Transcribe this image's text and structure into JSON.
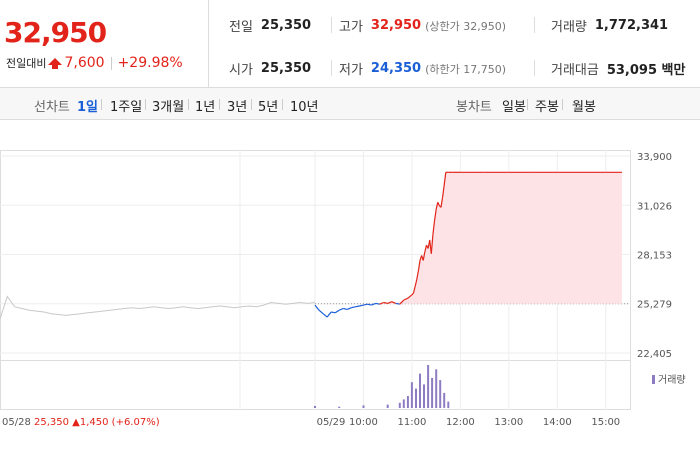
{
  "header": {
    "price": "32,950",
    "change_label": "전일대비",
    "change_amount": "7,600",
    "change_pct": "+29.98%"
  },
  "stats": {
    "prev_close_label": "전일",
    "prev_close": "25,350",
    "high_label": "고가",
    "high": "32,950",
    "upper_limit": "(상한가 32,950)",
    "volume_label": "거래량",
    "volume": "1,772,341",
    "open_label": "시가",
    "open": "25,350",
    "low_label": "저가",
    "low": "24,350",
    "lower_limit": "(하한가 17,750)",
    "amount_label": "거래대금",
    "amount": "53,095 백만"
  },
  "tabs": {
    "line_label": "선차트",
    "periods": [
      "1일",
      "1주일",
      "3개월",
      "1년",
      "3년",
      "5년",
      "10년"
    ],
    "active": "1일",
    "candle_label": "봉차트",
    "candles": [
      "일봉",
      "주봉",
      "월봉"
    ]
  },
  "colors": {
    "up": "#e2231a",
    "down": "#1a5fd6",
    "fill": "#fde3e5",
    "prev": "#c8c8c8",
    "volume": "#8e7cc3"
  },
  "chart_data": {
    "type": "line",
    "y_ticks": [
      "33,900",
      "31,026",
      "28,153",
      "25,279",
      "22,405"
    ],
    "ylim": [
      22405,
      33900
    ],
    "base_price": 25279,
    "x_ticks": [
      "05/29",
      "10:00",
      "11:00",
      "12:00",
      "13:00",
      "14:00",
      "15:00"
    ],
    "prev_day_label": "05/28",
    "prev_day_close": "25,350",
    "prev_day_change": "1,450",
    "prev_day_pct": "(+6.07%)",
    "volume_legend": "거래량",
    "prev_day": {
      "values": [
        24400,
        25700,
        25100,
        25000,
        24900,
        24850,
        24800,
        24700,
        24650,
        24600,
        24650,
        24700,
        24750,
        24800,
        24850,
        24900,
        24950,
        25000,
        25050,
        25000,
        25050,
        25100,
        25050,
        25000,
        25050,
        25100,
        25050,
        25000,
        25050,
        25100,
        25150,
        25100,
        25050,
        25100,
        25150,
        25100,
        25200,
        25350,
        25300,
        25250,
        25300,
        25350,
        25300,
        25350
      ]
    },
    "today": {
      "times": [
        "09:00",
        "09:05",
        "09:10",
        "09:15",
        "09:20",
        "09:25",
        "09:30",
        "09:35",
        "09:40",
        "09:45",
        "09:50",
        "09:55",
        "10:00",
        "10:05",
        "10:10",
        "10:15",
        "10:20",
        "10:25",
        "10:30",
        "10:35",
        "10:40",
        "10:45",
        "10:50",
        "10:55",
        "11:00",
        "11:02",
        "11:04",
        "11:06",
        "11:08",
        "11:10",
        "11:12",
        "11:14",
        "11:16",
        "11:18",
        "11:20",
        "11:22",
        "11:24",
        "11:26",
        "11:28",
        "11:30",
        "11:32",
        "11:34",
        "11:36",
        "11:38",
        "11:40",
        "11:42",
        "11:45",
        "11:50",
        "12:00",
        "12:30",
        "13:00",
        "13:30",
        "14:00",
        "14:30",
        "15:00",
        "15:20"
      ],
      "values": [
        25200,
        24900,
        24700,
        24500,
        24800,
        24750,
        24900,
        25000,
        24950,
        25050,
        25100,
        25150,
        25200,
        25250,
        25200,
        25300,
        25250,
        25350,
        25300,
        25400,
        25300,
        25250,
        25500,
        25600,
        25800,
        25900,
        26300,
        26700,
        27200,
        27800,
        28100,
        27800,
        28300,
        28700,
        28500,
        29000,
        28200,
        29300,
        30100,
        30800,
        31200,
        31000,
        30900,
        31500,
        32200,
        32950,
        32950,
        32950,
        32950,
        32950,
        32950,
        32950,
        32950,
        32950,
        32950,
        32950
      ]
    },
    "volume": {
      "times": [
        "09:00",
        "09:30",
        "10:00",
        "10:30",
        "10:45",
        "10:50",
        "10:55",
        "11:00",
        "11:05",
        "11:10",
        "11:15",
        "11:20",
        "11:25",
        "11:30",
        "11:35",
        "11:40",
        "11:45"
      ],
      "values": [
        5,
        3,
        6,
        8,
        12,
        20,
        28,
        60,
        45,
        80,
        55,
        100,
        70,
        90,
        65,
        35,
        15
      ]
    }
  }
}
